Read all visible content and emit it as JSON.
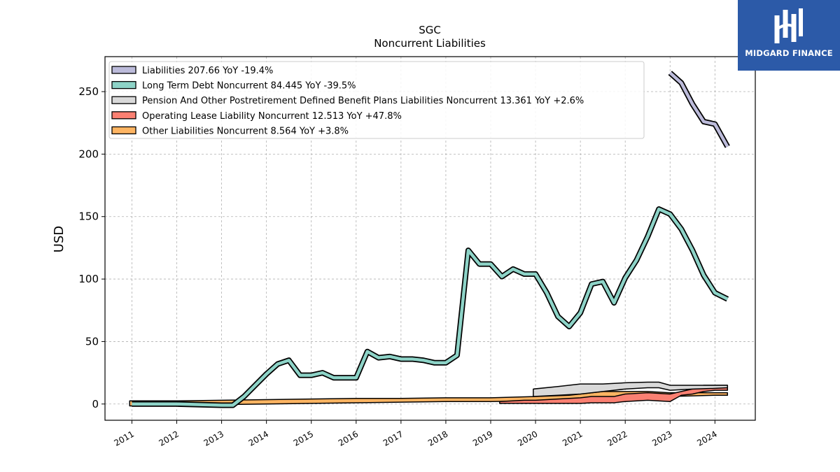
{
  "chart_data": {
    "type": "line",
    "title": "SGC",
    "subtitle": "Noncurrent  Liabilities",
    "ylabel": "USD",
    "xlabel": "",
    "ylim": [
      -13,
      278
    ],
    "xlim": [
      2010.4,
      2024.9
    ],
    "yticks": [
      0,
      50,
      100,
      150,
      200,
      250
    ],
    "xticks": [
      2011,
      2012,
      2013,
      2014,
      2015,
      2016,
      2017,
      2018,
      2019,
      2020,
      2021,
      2022,
      2023,
      2024
    ],
    "grid": true,
    "legend_position": "top-left",
    "series": [
      {
        "name": "Liabilities",
        "legend": "Liabilities  207.66 YoY -19.4%",
        "color": "#bcbbda",
        "points": [
          [
            2023.0,
            265
          ],
          [
            2023.25,
            257
          ],
          [
            2023.5,
            240
          ],
          [
            2023.75,
            226
          ],
          [
            2024.0,
            224
          ],
          [
            2024.28,
            206
          ]
        ]
      },
      {
        "name": "Long Term Debt Noncurrent",
        "legend": "Long Term Debt Noncurrent  84.445 YoY -39.5%",
        "color": "#8dd3c7",
        "points": [
          [
            2011.0,
            0
          ],
          [
            2012.0,
            0
          ],
          [
            2013.0,
            -1
          ],
          [
            2013.25,
            -1
          ],
          [
            2013.5,
            6
          ],
          [
            2013.75,
            15
          ],
          [
            2014.0,
            24
          ],
          [
            2014.25,
            32
          ],
          [
            2014.5,
            35
          ],
          [
            2014.75,
            23
          ],
          [
            2015.0,
            23
          ],
          [
            2015.25,
            25
          ],
          [
            2015.5,
            21
          ],
          [
            2015.75,
            21
          ],
          [
            2016.0,
            21
          ],
          [
            2016.25,
            42
          ],
          [
            2016.5,
            37
          ],
          [
            2016.75,
            38
          ],
          [
            2017.0,
            36
          ],
          [
            2017.25,
            36
          ],
          [
            2017.5,
            35
          ],
          [
            2017.75,
            33
          ],
          [
            2018.0,
            33
          ],
          [
            2018.25,
            39
          ],
          [
            2018.5,
            123
          ],
          [
            2018.75,
            112
          ],
          [
            2019.0,
            112
          ],
          [
            2019.25,
            102
          ],
          [
            2019.5,
            108
          ],
          [
            2019.75,
            104
          ],
          [
            2020.0,
            104
          ],
          [
            2020.25,
            89
          ],
          [
            2020.5,
            70
          ],
          [
            2020.75,
            62
          ],
          [
            2021.0,
            73
          ],
          [
            2021.25,
            96
          ],
          [
            2021.5,
            98
          ],
          [
            2021.75,
            81
          ],
          [
            2022.0,
            101
          ],
          [
            2022.25,
            115
          ],
          [
            2022.5,
            134
          ],
          [
            2022.75,
            156
          ],
          [
            2023.0,
            152
          ],
          [
            2023.25,
            140
          ],
          [
            2023.5,
            123
          ],
          [
            2023.75,
            103
          ],
          [
            2024.0,
            89
          ],
          [
            2024.28,
            84
          ]
        ]
      },
      {
        "name": "Pension And Other Postretirement Defined Benefit Plans Liabilities Noncurrent",
        "legend": "Pension And Other Postretirement Defined Benefit Plans Liabilities Noncurrent  13.361 YoY +2.6%",
        "color": "#d9d9d9",
        "band": [
          [
            2019.95,
            12,
            6
          ],
          [
            2020.5,
            14,
            7
          ],
          [
            2021.0,
            16,
            8
          ],
          [
            2021.5,
            16,
            10
          ],
          [
            2022.0,
            17,
            12
          ],
          [
            2022.5,
            17.5,
            13
          ],
          [
            2022.75,
            17.5,
            13
          ],
          [
            2023.0,
            15,
            11
          ],
          [
            2023.5,
            15,
            12
          ],
          [
            2024.0,
            15,
            12.5
          ],
          [
            2024.28,
            15,
            13
          ]
        ]
      },
      {
        "name": "Operating Lease Liability Noncurrent",
        "legend": "Operating Lease Liability Noncurrent  12.513 YoY +47.8%",
        "color": "#fb8072",
        "band": [
          [
            2019.2,
            2,
            0.5
          ],
          [
            2019.75,
            3,
            0.5
          ],
          [
            2020.0,
            3,
            0.5
          ],
          [
            2020.5,
            4,
            0.5
          ],
          [
            2021.0,
            5,
            0.5
          ],
          [
            2021.25,
            6,
            1
          ],
          [
            2021.5,
            6,
            1
          ],
          [
            2021.75,
            6,
            1
          ],
          [
            2022.0,
            8,
            2
          ],
          [
            2022.5,
            9,
            3
          ],
          [
            2023.0,
            8,
            2
          ],
          [
            2023.25,
            10,
            7
          ],
          [
            2023.5,
            12,
            8
          ],
          [
            2023.75,
            15,
            10
          ],
          [
            2024.0,
            15,
            11
          ],
          [
            2024.28,
            15,
            11
          ]
        ]
      },
      {
        "name": "Other Liabilities Noncurrent",
        "legend": "Other Liabilities Noncurrent  8.564 YoY +3.8%",
        "color": "#fdb462",
        "band": [
          [
            2010.95,
            2.5,
            -1.5
          ],
          [
            2012.0,
            2.5,
            -1
          ],
          [
            2013.0,
            3,
            -0.5
          ],
          [
            2014.0,
            3.5,
            0
          ],
          [
            2015.0,
            4,
            0.5
          ],
          [
            2016.0,
            4.5,
            1
          ],
          [
            2017.0,
            4.5,
            1.5
          ],
          [
            2018.0,
            5,
            2
          ],
          [
            2019.0,
            5,
            2
          ],
          [
            2020.0,
            6,
            2.5
          ],
          [
            2020.75,
            7,
            3
          ],
          [
            2021.0,
            8,
            4
          ],
          [
            2021.5,
            10,
            5.5
          ],
          [
            2022.0,
            10,
            6
          ],
          [
            2022.5,
            10,
            6
          ],
          [
            2022.75,
            9.5,
            5.5
          ],
          [
            2023.0,
            9,
            6
          ],
          [
            2023.5,
            9,
            6.5
          ],
          [
            2024.0,
            9,
            7
          ],
          [
            2024.28,
            9,
            7
          ]
        ]
      }
    ]
  },
  "logo": {
    "text": "MIDGARD FINANCE",
    "background": "#2c5aa8"
  }
}
